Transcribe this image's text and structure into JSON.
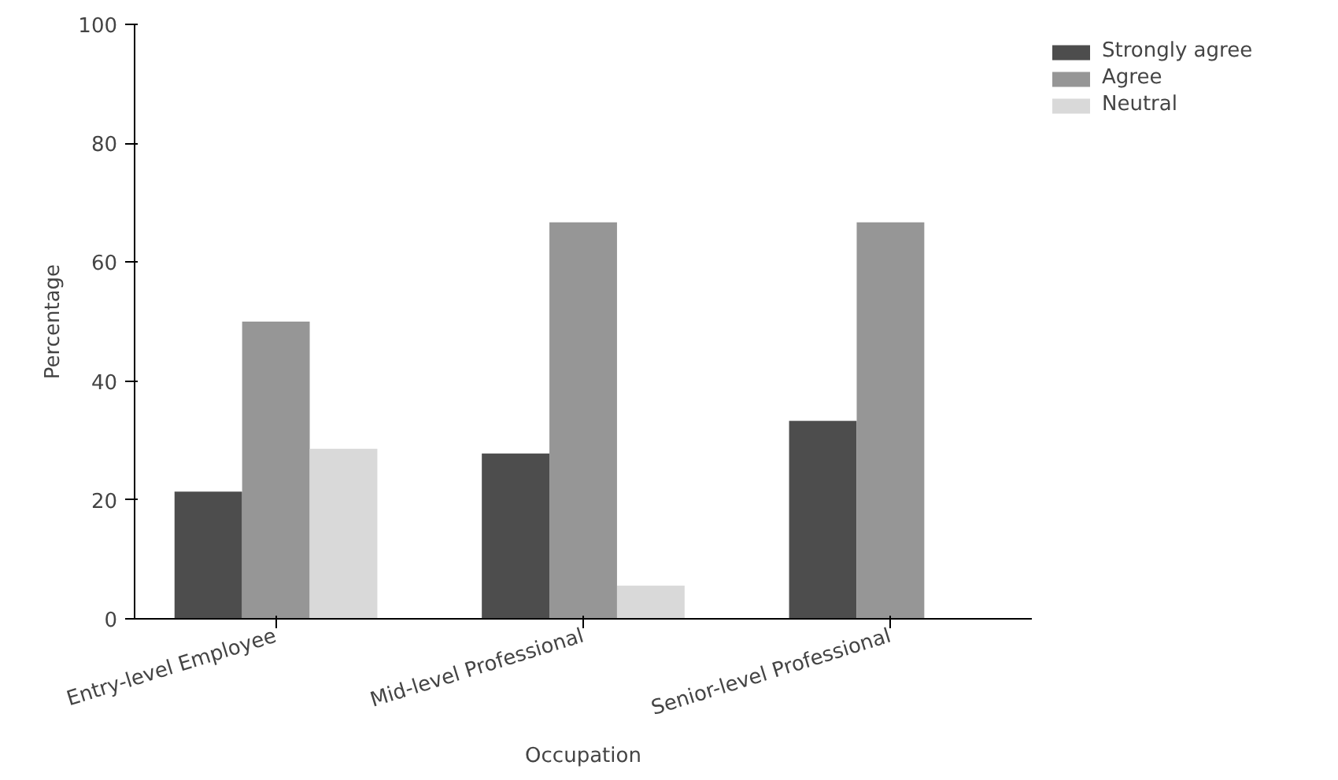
{
  "chart_data": {
    "type": "bar",
    "xlabel": "Occupation",
    "ylabel": "Percentage",
    "categories": [
      "Entry-level Employee",
      "Mid-level Professional",
      "Senior-level Professional"
    ],
    "series": [
      {
        "name": "Strongly agree",
        "color": "#4d4d4d",
        "values": [
          21.4,
          27.8,
          33.3
        ]
      },
      {
        "name": "Agree",
        "color": "#969696",
        "values": [
          50.0,
          66.7,
          66.7
        ]
      },
      {
        "name": "Neutral",
        "color": "#d9d9d9",
        "values": [
          28.6,
          5.6,
          0
        ]
      }
    ],
    "ylim": [
      0,
      100
    ],
    "yticks": [
      0,
      20,
      40,
      60,
      80,
      100
    ],
    "grid": false,
    "legend": "top right"
  }
}
